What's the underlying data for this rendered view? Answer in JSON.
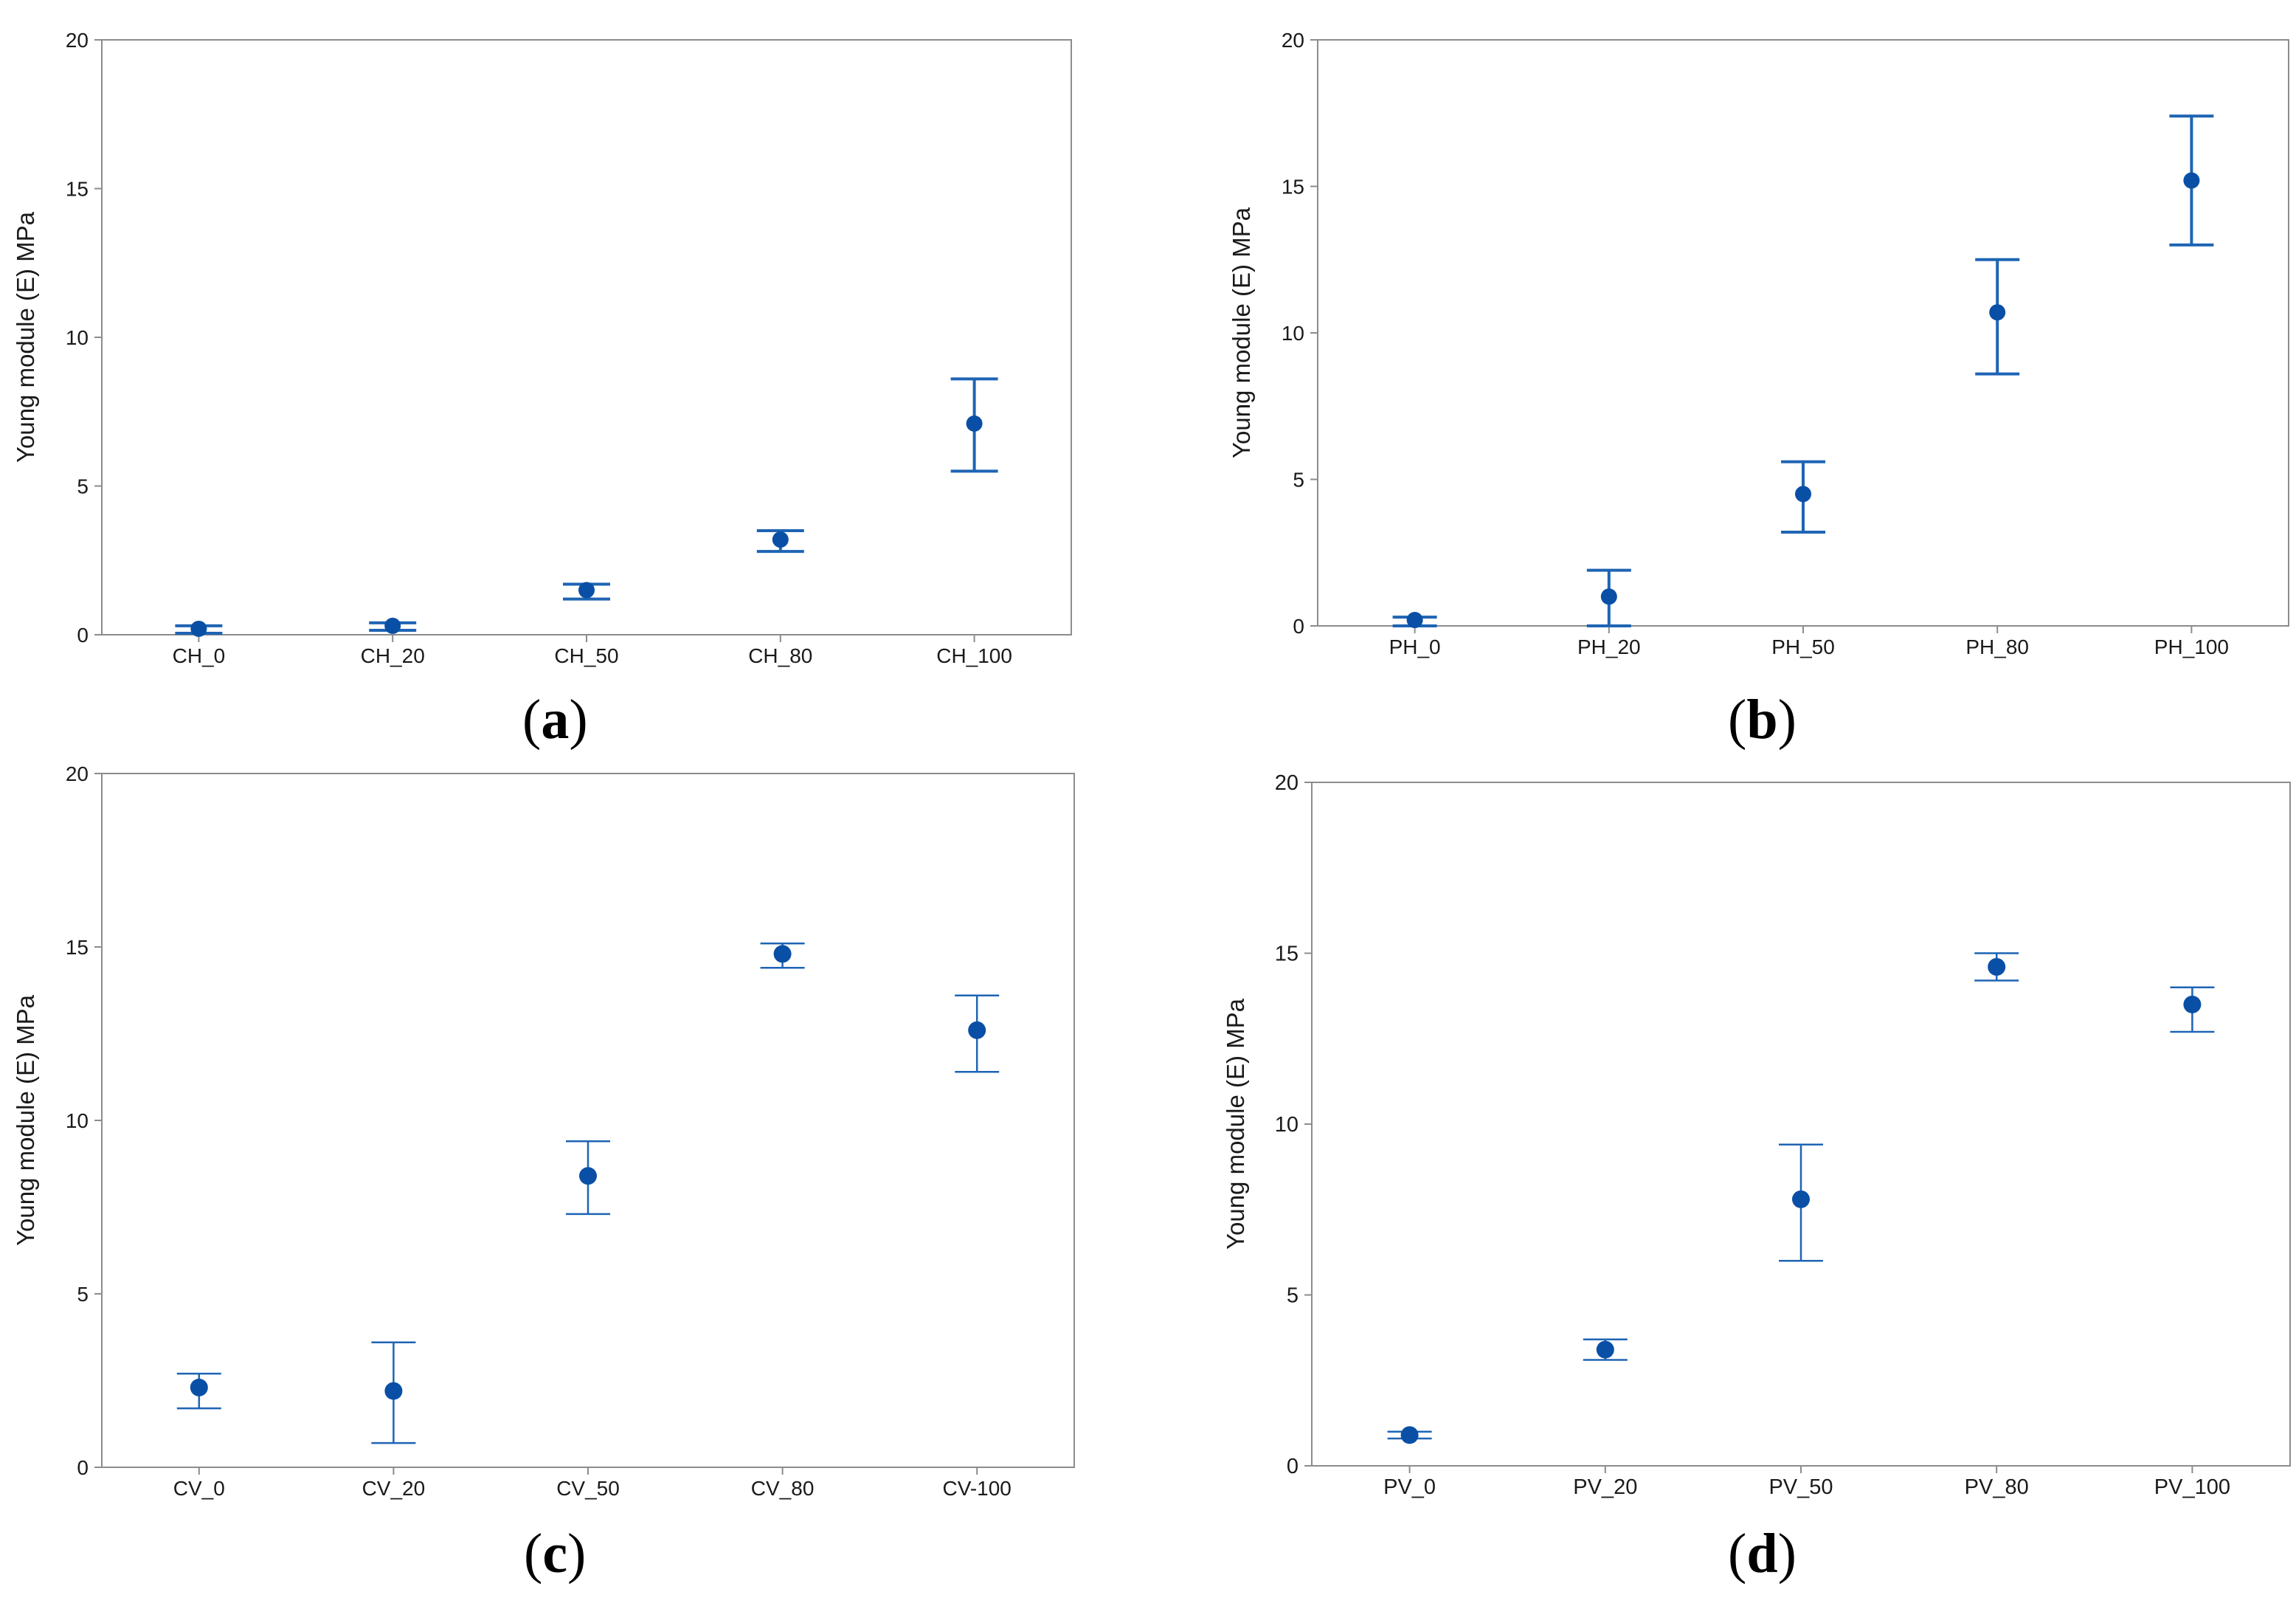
{
  "colors": {
    "marker": "#0a4fa6",
    "errorbar": "#1e64b4",
    "frame": "#8c8c8c",
    "text": "#1a1a1a"
  },
  "chart_data": [
    {
      "panel": "a",
      "type": "scatter",
      "subtype": "interval-plot",
      "title": "",
      "ylabel": "Young module (E) MPa",
      "xlabel": "",
      "ylim": [
        0,
        20
      ],
      "yticks": [
        "0",
        "5",
        "10",
        "15",
        "20"
      ],
      "categories": [
        "CH_0",
        "CH_20",
        "CH_50",
        "CH_80",
        "CH_100"
      ],
      "values": [
        0.2,
        0.3,
        1.5,
        3.2,
        7.1
      ],
      "lower": [
        0.05,
        0.15,
        1.2,
        2.8,
        5.5
      ],
      "upper": [
        0.3,
        0.4,
        1.7,
        3.5,
        8.6
      ],
      "caption": "a"
    },
    {
      "panel": "b",
      "type": "scatter",
      "subtype": "interval-plot",
      "title": "",
      "ylabel": "Young module (E) MPa",
      "xlabel": "",
      "ylim": [
        0,
        20
      ],
      "yticks": [
        "0",
        "5",
        "10",
        "15",
        "20"
      ],
      "categories": [
        "PH_0",
        "PH_20",
        "PH_50",
        "PH_80",
        "PH_100"
      ],
      "values": [
        0.2,
        1.0,
        4.5,
        10.7,
        15.2
      ],
      "lower": [
        0.0,
        0.0,
        3.2,
        8.6,
        13.0
      ],
      "upper": [
        0.3,
        1.9,
        5.6,
        12.5,
        17.4
      ],
      "caption": "b"
    },
    {
      "panel": "c",
      "type": "scatter",
      "subtype": "interval-plot",
      "title": "",
      "ylabel": "Young module (E) MPa",
      "xlabel": "",
      "ylim": [
        0,
        20
      ],
      "yticks": [
        "0",
        "5",
        "10",
        "15",
        "20"
      ],
      "categories": [
        "CV_0",
        "CV_20",
        "CV_50",
        "CV_80",
        "CV-100"
      ],
      "values": [
        2.3,
        2.2,
        8.4,
        14.8,
        12.6
      ],
      "lower": [
        1.7,
        0.7,
        7.3,
        14.4,
        11.4
      ],
      "upper": [
        2.7,
        3.6,
        9.4,
        15.1,
        13.6
      ],
      "caption": "c"
    },
    {
      "panel": "d",
      "type": "scatter",
      "subtype": "interval-plot",
      "title": "",
      "ylabel": "Young module (E) MPa",
      "xlabel": "",
      "ylim": [
        0,
        20
      ],
      "yticks": [
        "0",
        "5",
        "10",
        "15",
        "20"
      ],
      "categories": [
        "PV_0",
        "PV_20",
        "PV_50",
        "PV_80",
        "PV_100"
      ],
      "values": [
        0.9,
        3.4,
        7.8,
        14.6,
        13.5
      ],
      "lower": [
        0.8,
        3.1,
        6.0,
        14.2,
        12.7
      ],
      "upper": [
        1.0,
        3.7,
        9.4,
        15.0,
        14.0
      ],
      "caption": "d"
    }
  ]
}
